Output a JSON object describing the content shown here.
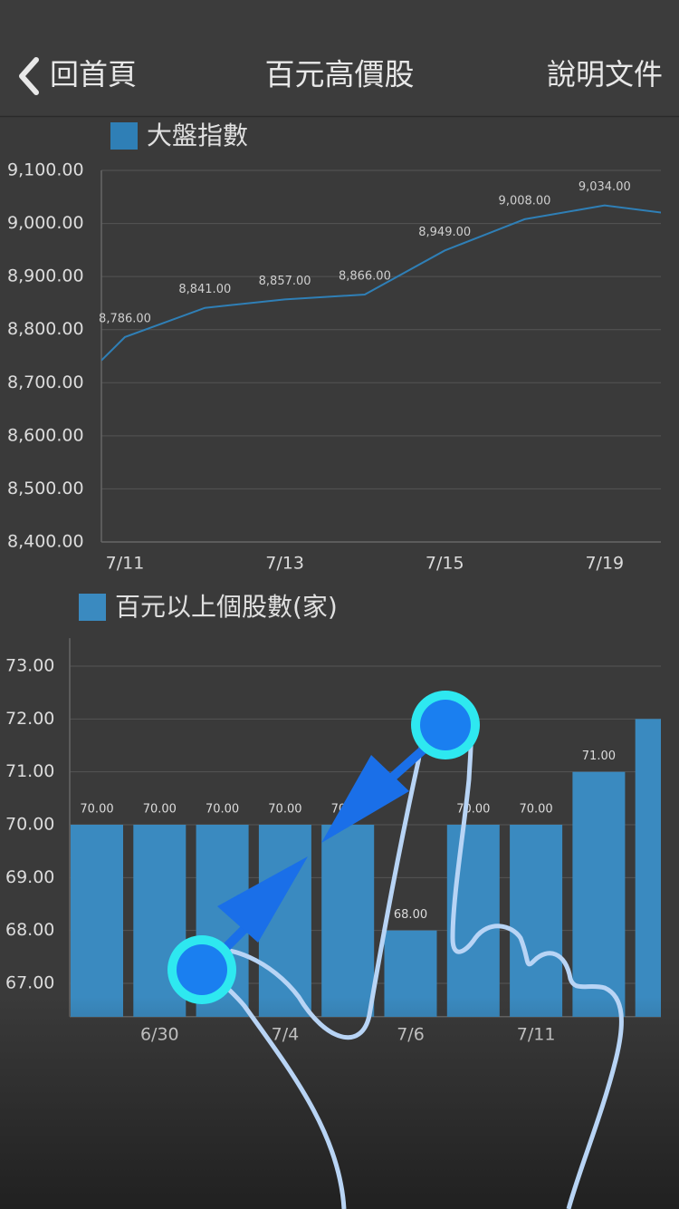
{
  "nav": {
    "back": "回首頁",
    "title": "百元高價股",
    "help": "說明文件"
  },
  "chart_data": [
    {
      "type": "line",
      "categories": [
        null,
        "7/11",
        null,
        "7/13",
        null,
        "7/15",
        null,
        "7/19",
        null
      ],
      "series": [
        {
          "name": "大盤指數",
          "color": "#2f7fb6",
          "values": [
            8742,
            8786,
            8841,
            8857,
            8866,
            8949,
            9008,
            9034,
            9015
          ],
          "value_labels": [
            null,
            "8,786.00",
            "8,841.00",
            "8,857.00",
            "8,866.00",
            "8,949.00",
            "9,008.00",
            "9,034.00",
            null
          ]
        }
      ],
      "ylim": [
        8400,
        9100
      ],
      "yticks": [
        {
          "value": 8400,
          "label": "8,400.00"
        },
        {
          "value": 8500,
          "label": "8,500.00"
        },
        {
          "value": 8600,
          "label": "8,600.00"
        },
        {
          "value": 8700,
          "label": "8,700.00"
        },
        {
          "value": 8800,
          "label": "8,800.00"
        },
        {
          "value": 8900,
          "label": "8,900.00"
        },
        {
          "value": 9000,
          "label": "9,000.00"
        },
        {
          "value": 9100,
          "label": "9,100.00"
        }
      ],
      "grid": true
    },
    {
      "type": "bar",
      "categories": [
        null,
        "6/30",
        null,
        "7/4",
        null,
        "7/6",
        null,
        "7/11",
        null,
        null
      ],
      "series": [
        {
          "name": "百元以上個股數(家)",
          "color": "#3a8ac0",
          "values": [
            70,
            70,
            70,
            70,
            70,
            68,
            70,
            70,
            71,
            72
          ],
          "value_labels": [
            "70.00",
            "70.00",
            "70.00",
            "70.00",
            "70.00",
            "68.00",
            "70.00",
            "70.00",
            "71.00",
            null
          ]
        }
      ],
      "ylim": [
        66.37,
        73.53
      ],
      "yticks": [
        {
          "value": 67,
          "label": "67.00"
        },
        {
          "value": 68,
          "label": "68.00"
        },
        {
          "value": 69,
          "label": "69.00"
        },
        {
          "value": 70,
          "label": "70.00"
        },
        {
          "value": 71,
          "label": "71.00"
        },
        {
          "value": 72,
          "label": "72.00"
        },
        {
          "value": 73,
          "label": "73.00"
        }
      ],
      "grid": true
    }
  ]
}
